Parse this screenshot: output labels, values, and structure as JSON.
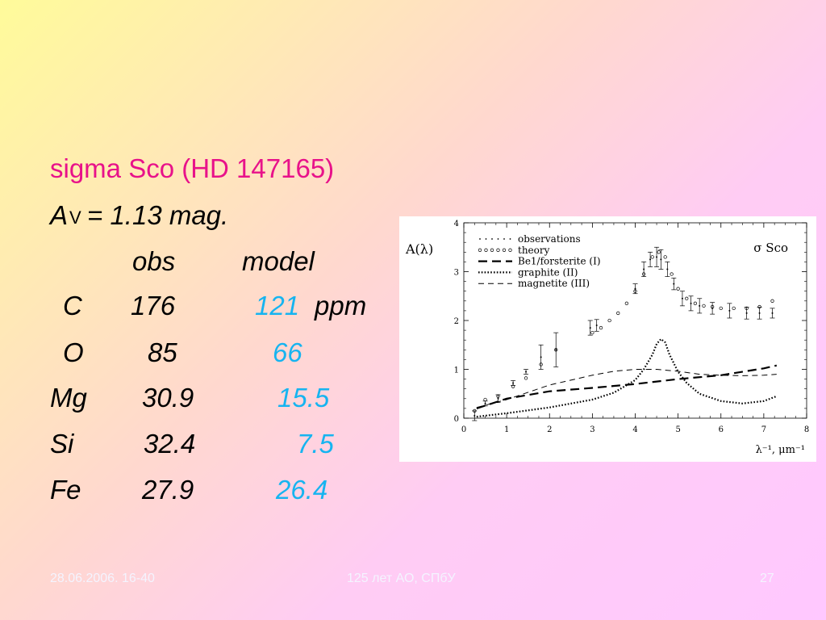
{
  "slide": {
    "title": "sigma Sco (HD 147165)",
    "av": {
      "symbol": "A",
      "subscript": "V",
      "rest": " = 1.13 mag."
    },
    "columns": {
      "obs": "obs",
      "model": "model"
    },
    "rows": [
      {
        "element": "C",
        "obs": "176",
        "model": "121",
        "unit": "ppm"
      },
      {
        "element": "O",
        "obs": "85",
        "model": "66",
        "unit": ""
      },
      {
        "element": "Mg",
        "obs": "30.9",
        "model": "15.5",
        "unit": ""
      },
      {
        "element": "Si",
        "obs": "32.4",
        "model": "7.5",
        "unit": ""
      },
      {
        "element": "Fe",
        "obs": "27.9",
        "model": "26.4",
        "unit": ""
      }
    ],
    "colors": {
      "title": "#e8128a",
      "model_values": "#16b4f0",
      "footer": "#f4f4ff"
    }
  },
  "footer": {
    "date": "28.06.2006. 16-40",
    "center": "125 лет АО, СПбУ",
    "page": "27"
  },
  "chart_data": {
    "type": "line",
    "title": "σ  Sco",
    "ylabel": "A(λ)",
    "xlabel": "λ⁻¹,  μm⁻¹",
    "xlim": [
      0,
      8
    ],
    "ylim": [
      0,
      4
    ],
    "xticks": [
      "0",
      "1",
      "2",
      "3",
      "4",
      "5",
      "6",
      "7",
      "8"
    ],
    "yticks": [
      "0",
      "1",
      "2",
      "3",
      "4"
    ],
    "legend_position": "top-left",
    "legend": [
      "observations",
      "theory",
      "Be1/forsterite  (I)",
      "graphite  (II)",
      "magnetite  (III)"
    ],
    "observations": {
      "x": [
        0.25,
        0.5,
        0.8,
        1.15,
        1.45,
        1.8,
        2.15,
        2.95,
        3.1,
        4.0,
        4.2,
        4.35,
        4.5,
        4.6,
        4.75,
        4.9,
        5.1,
        5.3,
        5.5,
        5.8,
        6.2,
        6.6,
        6.9,
        7.2
      ],
      "y": [
        0.05,
        0.3,
        0.4,
        0.72,
        0.95,
        1.25,
        1.4,
        1.85,
        1.9,
        2.65,
        3.05,
        3.25,
        3.3,
        3.25,
        3.05,
        2.75,
        2.45,
        2.35,
        2.3,
        2.25,
        2.2,
        2.15,
        2.15,
        2.15
      ],
      "err": [
        0.1,
        0.05,
        0.08,
        0.05,
        0.05,
        0.25,
        0.35,
        0.15,
        0.12,
        0.1,
        0.15,
        0.15,
        0.2,
        0.2,
        0.15,
        0.12,
        0.15,
        0.15,
        0.15,
        0.12,
        0.15,
        0.12,
        0.12,
        0.1
      ]
    },
    "theory": {
      "x": [
        0.25,
        0.5,
        0.8,
        1.15,
        1.45,
        1.8,
        2.15,
        3.0,
        3.2,
        3.4,
        3.6,
        3.8,
        4.0,
        4.2,
        4.4,
        4.55,
        4.7,
        4.85,
        5.0,
        5.2,
        5.4,
        5.6,
        5.8,
        6.0,
        6.3,
        6.6,
        6.9,
        7.2
      ],
      "y": [
        0.15,
        0.38,
        0.45,
        0.65,
        0.82,
        1.1,
        1.4,
        1.75,
        1.85,
        2.0,
        2.15,
        2.35,
        2.6,
        2.95,
        3.3,
        3.4,
        3.3,
        2.95,
        2.65,
        2.45,
        2.35,
        2.3,
        2.28,
        2.25,
        2.25,
        2.25,
        2.28,
        2.4
      ]
    },
    "series": [
      {
        "name": "Be1/forsterite  (I)",
        "style": "long-dash",
        "x": [
          0.3,
          1,
          2,
          3,
          4,
          5,
          6,
          7,
          7.3
        ],
        "y": [
          0.2,
          0.4,
          0.55,
          0.62,
          0.7,
          0.8,
          0.88,
          1.02,
          1.08
        ]
      },
      {
        "name": "graphite  (II)",
        "style": "dotted",
        "x": [
          0.3,
          1,
          2,
          3,
          3.5,
          4,
          4.2,
          4.4,
          4.5,
          4.6,
          4.7,
          4.8,
          5.0,
          5.2,
          5.5,
          6,
          6.5,
          7,
          7.3
        ],
        "y": [
          0.03,
          0.1,
          0.22,
          0.38,
          0.52,
          0.78,
          1.0,
          1.3,
          1.52,
          1.62,
          1.55,
          1.3,
          0.95,
          0.72,
          0.5,
          0.35,
          0.3,
          0.35,
          0.45
        ]
      },
      {
        "name": "magnetite  (III)",
        "style": "short-dash",
        "x": [
          0.3,
          1,
          2,
          3,
          3.5,
          4,
          4.5,
          5,
          5.5,
          6,
          6.5,
          7,
          7.3
        ],
        "y": [
          0.22,
          0.38,
          0.68,
          0.88,
          0.96,
          1.0,
          1.0,
          0.96,
          0.9,
          0.88,
          0.87,
          0.88,
          0.9
        ]
      }
    ]
  }
}
